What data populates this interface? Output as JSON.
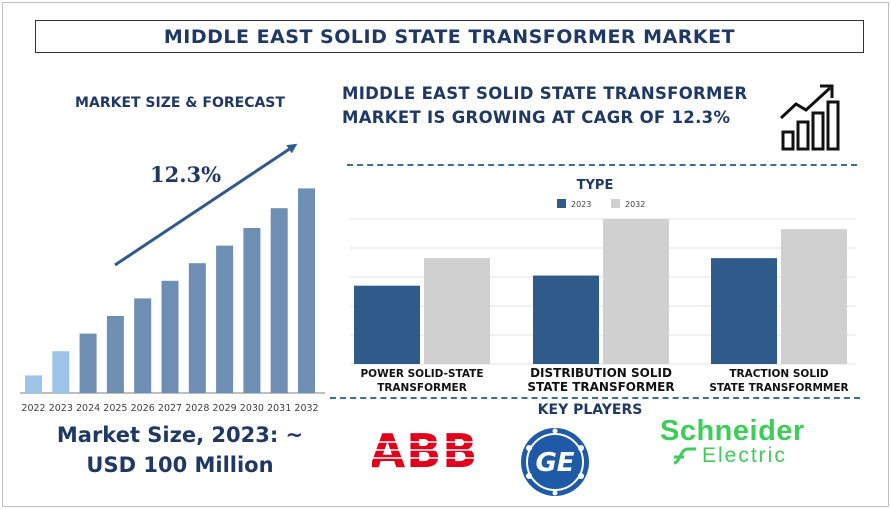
{
  "title": "MIDDLE EAST SOLID STATE TRANSFORMER MARKET",
  "left_heading": "MARKET SIZE & FORECAST",
  "right_heading_line1": "MIDDLE EAST SOLID STATE TRANSFORMER",
  "right_heading_line2": "MARKET IS GROWING AT CAGR OF 12.3%",
  "cagr_label": "12.3%",
  "market_size_line1": "Market Size, 2023: ~",
  "market_size_line2": "USD 100 Million",
  "key_players_label": "KEY PLAYERS",
  "logos": {
    "abb": "ABB",
    "schneider_line1": "Schneider",
    "schneider_line2": "Electric"
  },
  "colors": {
    "navy": "#1f3864",
    "bar_light": "#9dc3e6",
    "bar_mid": "#6e8fb3",
    "series_2023": "#2e5b8a",
    "series_2032": "#d0d0d0",
    "abb_red": "#e2001a",
    "ge_blue": "#1e5aa8",
    "schneider_green": "#3dcd58"
  },
  "chart_data": [
    {
      "type": "bar",
      "categories": [
        "2022",
        "2023",
        "2024",
        "2025",
        "2026",
        "2027",
        "2028",
        "2029",
        "2030",
        "2031",
        "2032"
      ],
      "values": [
        8,
        19,
        27,
        35,
        43,
        51,
        59,
        67,
        75,
        84,
        93
      ],
      "ylim": [
        0,
        100
      ],
      "highlighted": [
        "2022",
        "2023"
      ],
      "annotation": "12.3%",
      "grid": false
    },
    {
      "type": "bar",
      "title": "TYPE",
      "categories": [
        "POWER SOLID-STATE TRANSFORMER",
        "DISTRIBUTION SOLID STATE TRANSFORMER",
        "TRACTION SOLID STATE TRANSFORMMER"
      ],
      "category_lines": [
        [
          "POWER SOLID-STATE",
          "TRANSFORMER"
        ],
        [
          "DISTRIBUTION SOLID",
          "STATE TRANSFORMER"
        ],
        [
          "TRACTION SOLID",
          "STATE TRANSFORMMER"
        ]
      ],
      "series": [
        {
          "name": "2023",
          "values": [
            54,
            61,
            73
          ]
        },
        {
          "name": "2032",
          "values": [
            73,
            100,
            93
          ]
        }
      ],
      "ylim": [
        0,
        100
      ],
      "legend": "top",
      "grid": true
    }
  ]
}
